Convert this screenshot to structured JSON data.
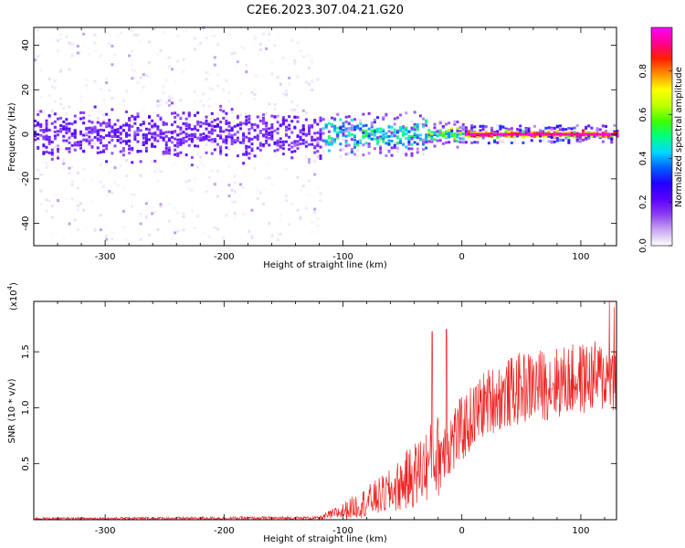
{
  "title": "C2E6.2023.307.04.21.G20",
  "chart_data": [
    {
      "type": "heatmap",
      "name": "spectrogram",
      "xlabel": "Height of straight line (km)",
      "ylabel": "Frequency (Hz)",
      "xlim": [
        -360,
        130
      ],
      "ylim": [
        -50,
        48
      ],
      "xticks": [
        -300,
        -200,
        -100,
        0,
        100
      ],
      "yticks": [
        -40,
        -20,
        0,
        20,
        40
      ],
      "colorbar": {
        "label": "Normalized spectral amplitude",
        "range": [
          0,
          1
        ],
        "ticks": [
          0.0,
          0.2,
          0.4,
          0.6,
          0.8
        ],
        "colormap": [
          "#ffffff",
          "#c9a8f0",
          "#8c3df0",
          "#5a00ff",
          "#2000ff",
          "#0060ff",
          "#00d8ff",
          "#00ff80",
          "#40ff00",
          "#c0ff00",
          "#ffff00",
          "#ff9000",
          "#ff2000",
          "#ff0090",
          "#ff00ff"
        ]
      },
      "regions": [
        {
          "x": [
            -360,
            -120
          ],
          "spread_hz": 48,
          "core_hz": 8,
          "peak_amplitude": 0.25
        },
        {
          "x": [
            -120,
            -30
          ],
          "spread_hz": 10,
          "core_hz": 5,
          "peak_amplitude": 0.55
        },
        {
          "x": [
            -30,
            0
          ],
          "spread_hz": 6,
          "core_hz": 2,
          "peak_amplitude": 0.7
        },
        {
          "x": [
            0,
            130
          ],
          "spread_hz": 4,
          "core_hz": 1,
          "peak_amplitude": 0.95
        }
      ]
    },
    {
      "type": "line",
      "name": "snr",
      "xlabel": "Height of straight line (km)",
      "ylabel": "SNR (10 * v/v)",
      "yscale_label": "(x10",
      "yscale_exp": "4",
      "xlim": [
        -360,
        130
      ],
      "ylim": [
        0,
        1.95
      ],
      "xticks": [
        -300,
        -200,
        -100,
        0,
        100
      ],
      "yticks": [
        0.5,
        1.0,
        1.5
      ],
      "color": "#ee2222",
      "envelope": [
        {
          "x": -360,
          "low": 0.0,
          "high": 0.02
        },
        {
          "x": -120,
          "low": 0.0,
          "high": 0.03
        },
        {
          "x": -100,
          "low": 0.0,
          "high": 0.15
        },
        {
          "x": -80,
          "low": 0.02,
          "high": 0.3
        },
        {
          "x": -60,
          "low": 0.05,
          "high": 0.45
        },
        {
          "x": -40,
          "low": 0.1,
          "high": 0.7
        },
        {
          "x": -20,
          "low": 0.2,
          "high": 0.95
        },
        {
          "x": 0,
          "low": 0.5,
          "high": 1.1
        },
        {
          "x": 20,
          "low": 0.75,
          "high": 1.35
        },
        {
          "x": 50,
          "low": 0.85,
          "high": 1.5
        },
        {
          "x": 80,
          "low": 0.9,
          "high": 1.55
        },
        {
          "x": 110,
          "low": 0.95,
          "high": 1.6
        },
        {
          "x": 130,
          "low": 0.95,
          "high": 1.6
        }
      ],
      "spikes": [
        {
          "x": -13,
          "y": 1.7
        },
        {
          "x": -25,
          "y": 1.68
        },
        {
          "x": 124,
          "y": 1.95
        },
        {
          "x": 128,
          "y": 1.9
        }
      ]
    }
  ]
}
